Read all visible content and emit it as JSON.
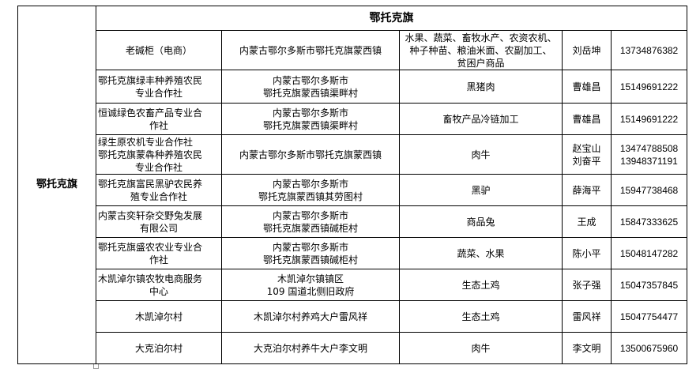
{
  "region": "鄂托克旗",
  "title": "鄂托克旗",
  "rows": [
    {
      "name": [
        "老碱柜（电商）"
      ],
      "address": [
        "内蒙古鄂尔多斯市鄂托克旗蒙西镇"
      ],
      "products": [
        "水果、蔬菜、畜牧水产、农资农机、",
        "种子种苗、粮油米面、农副加工、",
        "贫困户商品"
      ],
      "contact": [
        "刘岳坤"
      ],
      "phone": [
        "13734876382"
      ]
    },
    {
      "name": [
        "鄂托克旗绿丰种养殖农民",
        "专业合作社"
      ],
      "address": [
        "内蒙古鄂尔多斯市",
        "鄂托克旗蒙西镇渠畔村"
      ],
      "products": [
        "黑猪肉"
      ],
      "contact": [
        "曹雄昌"
      ],
      "phone": [
        "15149691222"
      ]
    },
    {
      "name": [
        "恒诚绿色农畜产品专业合",
        "作社"
      ],
      "address": [
        "内蒙古鄂尔多斯市",
        "鄂托克旗蒙西镇渠畔村"
      ],
      "products": [
        "畜牧产品冷链加工"
      ],
      "contact": [
        "曹雄昌"
      ],
      "phone": [
        "15149691222"
      ]
    },
    {
      "name": [
        "绿生原农机专业合作社",
        "鄂托克旗蒙犇种养殖农民",
        "专业合作社"
      ],
      "address": [
        "内蒙古鄂尔多斯市鄂托克旗蒙西镇"
      ],
      "products": [
        "肉牛"
      ],
      "contact": [
        "赵宝山",
        "刘奋平"
      ],
      "phone": [
        "13474788508",
        "13948371191"
      ]
    },
    {
      "name": [
        "鄂托克旗富民黑驴农民养",
        "殖专业合作社"
      ],
      "address": [
        "内蒙古鄂尔多斯市",
        "鄂托克旗蒙西镇其劳图村"
      ],
      "products": [
        "黑驴"
      ],
      "contact": [
        "薛海平"
      ],
      "phone": [
        "15947738468"
      ]
    },
    {
      "name": [
        "内蒙古奕轩杂交野兔发展",
        "有限公司"
      ],
      "address": [
        "内蒙古鄂尔多斯市",
        "鄂托克旗蒙西镇碱柜村"
      ],
      "products": [
        "商品兔"
      ],
      "contact": [
        "王成"
      ],
      "phone": [
        "15847333625"
      ]
    },
    {
      "name": [
        "鄂托克旗盛农农业专业合",
        "作社"
      ],
      "address": [
        "内蒙古鄂尔多斯市",
        "鄂托克旗蒙西镇碱柜村"
      ],
      "products": [
        "蔬菜、水果"
      ],
      "contact": [
        "陈小平"
      ],
      "phone": [
        "15048147282"
      ]
    },
    {
      "name": [
        "木凯淖尔镇农牧电商服务",
        "中心"
      ],
      "address": [
        "木凯淖尔镇镇区",
        "109 国道北侧旧政府"
      ],
      "products": [
        "生态土鸡"
      ],
      "contact": [
        "张子强"
      ],
      "phone": [
        "15047357845"
      ]
    },
    {
      "name": [
        "木凯淖尔村"
      ],
      "address": [
        "木凯淖尔村养鸡大户雷风祥"
      ],
      "products": [
        "生态土鸡"
      ],
      "contact": [
        "雷风祥"
      ],
      "phone": [
        "15047754477"
      ]
    },
    {
      "name": [
        "大克泊尔村"
      ],
      "address": [
        "大克泊尔村养牛大户李文明"
      ],
      "products": [
        "肉牛"
      ],
      "contact": [
        "李文明"
      ],
      "phone": [
        "13500675960"
      ]
    }
  ]
}
